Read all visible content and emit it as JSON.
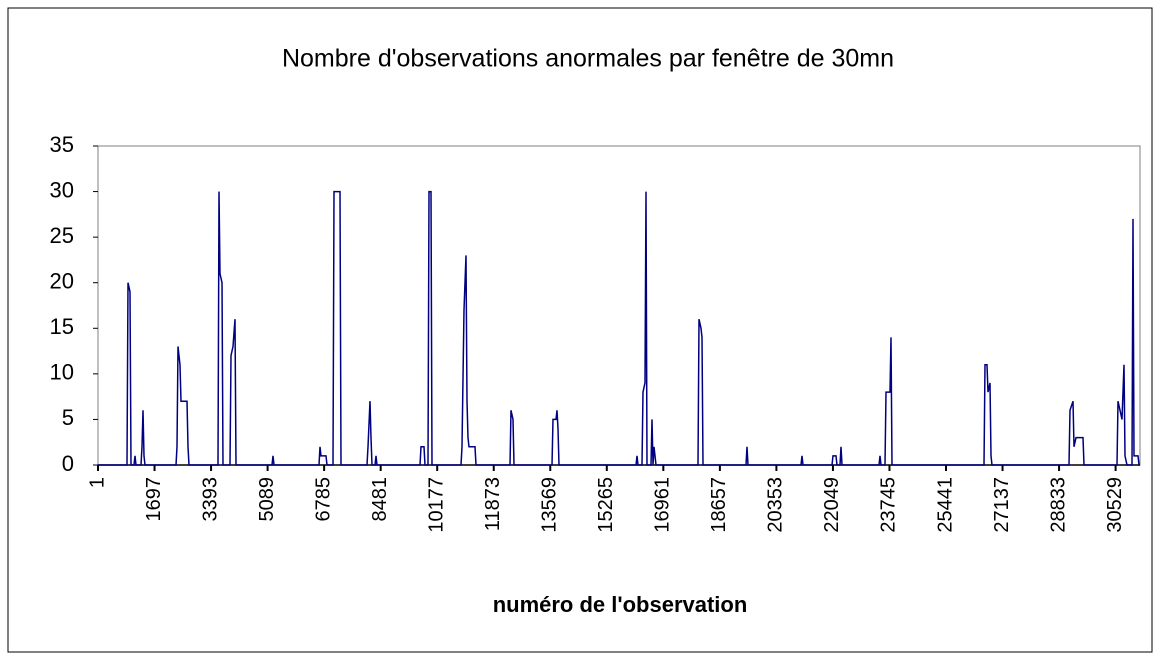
{
  "chart_data": {
    "type": "line",
    "title": "Nombre d'observations anormales par fenêtre de 30mn",
    "x_label": "numéro de l'observation",
    "xlim": [
      1,
      31261
    ],
    "xticks": [
      1,
      1697,
      3393,
      5089,
      6785,
      8481,
      10177,
      11873,
      13569,
      15265,
      16961,
      18657,
      20353,
      22049,
      23745,
      25441,
      27137,
      28833,
      30529
    ],
    "ylim": [
      0,
      35
    ],
    "yticks": [
      0,
      5,
      10,
      15,
      20,
      25,
      30,
      35
    ],
    "series": [
      {
        "color": "#000080",
        "x": [
          1,
          871,
          901,
          961,
          991,
          1081,
          1111,
          1141,
          1291,
          1321,
          1351,
          1381,
          1411,
          2341,
          2371,
          2401,
          2461,
          2491,
          2671,
          2701,
          2731,
          3601,
          3631,
          3661,
          3721,
          3751,
          3961,
          3991,
          4051,
          4111,
          4141,
          5221,
          5251,
          5281,
          6631,
          6661,
          6691,
          6841,
          6871,
          7051,
          7081,
          7261,
          7291,
          8071,
          8101,
          8161,
          8191,
          8221,
          8311,
          8341,
          8371,
          9661,
          9691,
          9781,
          9811,
          9901,
          9931,
          9991,
          10021,
          10891,
          10921,
          10981,
          11041,
          11071,
          11101,
          11131,
          11311,
          11341,
          12361,
          12391,
          12451,
          12481,
          13621,
          13651,
          13741,
          13771,
          13801,
          13831,
          16141,
          16171,
          16201,
          16321,
          16351,
          16411,
          16441,
          16471,
          16591,
          16621,
          16651,
          16681,
          16711,
          16741,
          18001,
          18031,
          18091,
          18121,
          18151,
          19441,
          19471,
          19501,
          21091,
          21121,
          21151,
          22021,
          22051,
          22141,
          22171,
          22261,
          22291,
          22321,
          23431,
          23461,
          23491,
          23611,
          23641,
          23761,
          23791,
          23821,
          26581,
          26611,
          26671,
          26701,
          26761,
          26791,
          26821,
          29131,
          29161,
          29251,
          29281,
          29341,
          29551,
          29581,
          30571,
          30601,
          30661,
          30721,
          30781,
          30811,
          30871,
          31021,
          31051,
          31081,
          31201,
          31231,
          31261
        ],
        "values": [
          0,
          0,
          20,
          19,
          0,
          0,
          1,
          0,
          0,
          2,
          6,
          1,
          0,
          0,
          2,
          13,
          11,
          7,
          7,
          2,
          0,
          0,
          30,
          21,
          20,
          0,
          0,
          12,
          13,
          16,
          0,
          0,
          1,
          0,
          0,
          2,
          1,
          1,
          0,
          0,
          30,
          30,
          0,
          0,
          2,
          7,
          3,
          0,
          0,
          1,
          0,
          0,
          2,
          2,
          0,
          0,
          30,
          30,
          0,
          0,
          2,
          17,
          23,
          7,
          3,
          2,
          2,
          0,
          0,
          6,
          5,
          0,
          0,
          5,
          5,
          6,
          4,
          0,
          0,
          1,
          0,
          0,
          8,
          9,
          30,
          0,
          0,
          5,
          0,
          2,
          1,
          0,
          0,
          16,
          15,
          14,
          0,
          0,
          2,
          0,
          0,
          1,
          0,
          0,
          1,
          1,
          0,
          0,
          2,
          0,
          0,
          1,
          0,
          0,
          8,
          8,
          14,
          0,
          0,
          11,
          11,
          8,
          9,
          1,
          0,
          0,
          6,
          7,
          2,
          3,
          3,
          0,
          0,
          7,
          6,
          5,
          11,
          1,
          0,
          0,
          27,
          1,
          1,
          0,
          0
        ]
      }
    ]
  }
}
